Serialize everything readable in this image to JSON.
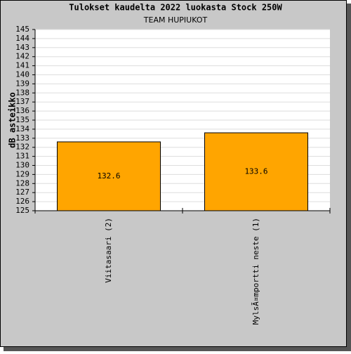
{
  "chart_data": {
    "type": "bar",
    "title": "Tulokset kaudelta 2022 luokasta Stock 250W",
    "subtitle": "TEAM HUPIUKOT",
    "y_label": "dB asteikko",
    "categories": [
      "Viitasaari (2)",
      "MylsÃ¤mportti neste (1)"
    ],
    "values": [
      132.6,
      133.6
    ],
    "color": "#ffa500",
    "ylim": [
      125,
      145
    ],
    "yticks": [
      125,
      126,
      127,
      128,
      129,
      130,
      131,
      132,
      133,
      134,
      135,
      136,
      137,
      138,
      139,
      140,
      141,
      142,
      143,
      144,
      145
    ],
    "grid": true
  }
}
